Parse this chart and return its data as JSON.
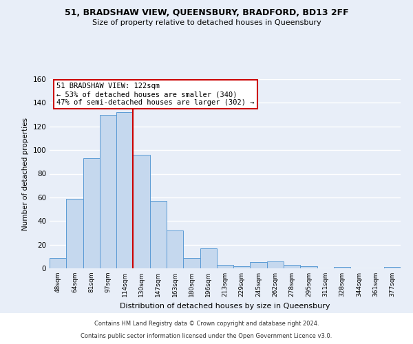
{
  "title1": "51, BRADSHAW VIEW, QUEENSBURY, BRADFORD, BD13 2FF",
  "title2": "Size of property relative to detached houses in Queensbury",
  "xlabel": "Distribution of detached houses by size in Queensbury",
  "ylabel": "Number of detached properties",
  "bar_labels": [
    "48sqm",
    "64sqm",
    "81sqm",
    "97sqm",
    "114sqm",
    "130sqm",
    "147sqm",
    "163sqm",
    "180sqm",
    "196sqm",
    "213sqm",
    "229sqm",
    "245sqm",
    "262sqm",
    "278sqm",
    "295sqm",
    "311sqm",
    "328sqm",
    "344sqm",
    "361sqm",
    "377sqm"
  ],
  "bar_heights": [
    9,
    59,
    93,
    130,
    132,
    96,
    57,
    32,
    9,
    17,
    3,
    2,
    5,
    6,
    3,
    2,
    0,
    1,
    0,
    0,
    1
  ],
  "bar_color": "#c5d8ee",
  "bar_edge_color": "#5b9bd5",
  "property_line_idx": 5,
  "property_line_color": "#cc0000",
  "annotation_text": "51 BRADSHAW VIEW: 122sqm\n← 53% of detached houses are smaller (340)\n47% of semi-detached houses are larger (302) →",
  "annotation_box_color": "#ffffff",
  "annotation_box_edge": "#cc0000",
  "footer1": "Contains HM Land Registry data © Crown copyright and database right 2024.",
  "footer2": "Contains public sector information licensed under the Open Government Licence v3.0.",
  "ylim": [
    0,
    160
  ],
  "bg_color": "#e8eef8",
  "plot_bg_color": "#e8eef8",
  "grid_color": "#ffffff",
  "footer_bg": "#ffffff"
}
